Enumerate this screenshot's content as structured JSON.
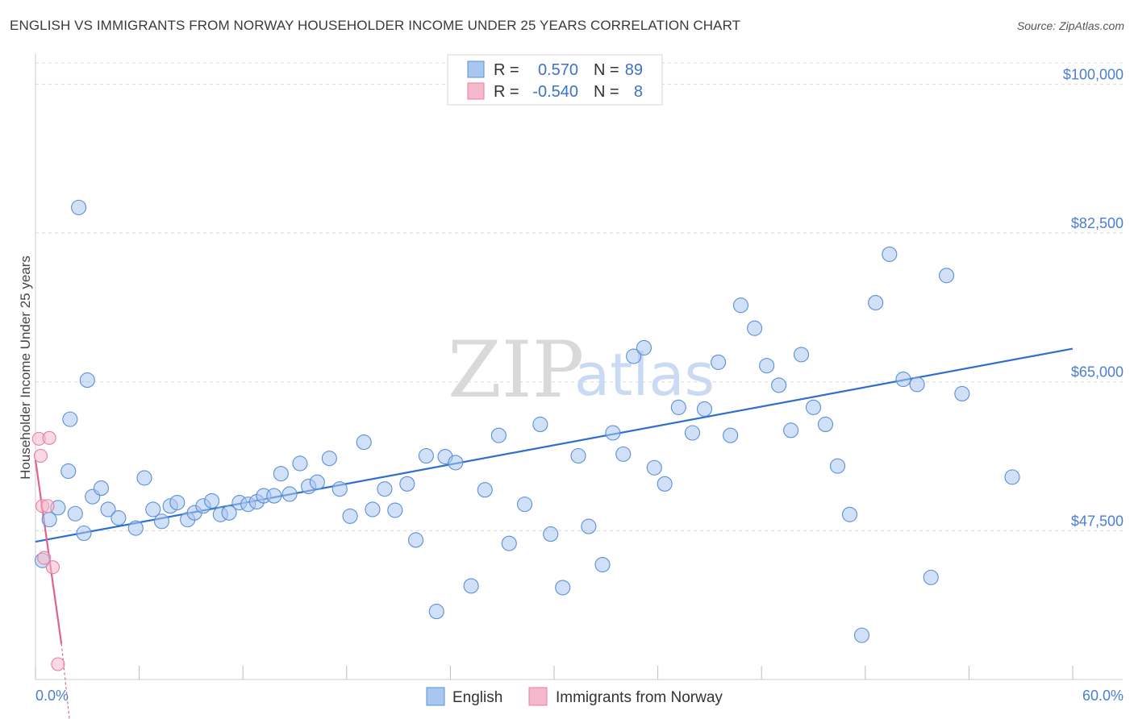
{
  "title": "ENGLISH VS IMMIGRANTS FROM NORWAY HOUSEHOLDER INCOME UNDER 25 YEARS CORRELATION CHART",
  "source": "Source: ZipAtlas.com",
  "watermark": {
    "zip": "ZIP",
    "atlas": "atlas"
  },
  "colors": {
    "english_fill": "#a9c7ee",
    "english_stroke": "#5b8fd6",
    "english_line": "#2f6fcc",
    "norway_fill": "#f6b9cb",
    "norway_stroke": "#e57ea0",
    "norway_line": "#e0628e",
    "grid": "#d8d8d8",
    "axis_text": "#4a7fd0"
  },
  "legend": {
    "rows": [
      {
        "r_label": "R =",
        "r_value": "0.570",
        "n_label": "N =",
        "n_value": "89"
      },
      {
        "r_label": "R =",
        "r_value": "-0.540",
        "n_label": "N =",
        "n_value": "8"
      }
    ]
  },
  "bottom_legend": [
    "English",
    "Immigrants from Norway"
  ],
  "chart_data": {
    "type": "scatter",
    "xlabel": "",
    "ylabel": "Householder Income Under 25 years",
    "xlim": [
      0,
      60
    ],
    "ylim": [
      30000,
      102500
    ],
    "x_tick_labels": [
      "0.0%",
      "60.0%"
    ],
    "y_ticks": [
      47500,
      65000,
      82500,
      100000
    ],
    "y_tick_labels": [
      "$47,500",
      "$65,000",
      "$82,500",
      "$100,000"
    ],
    "grid": true,
    "legend_position": "top-center",
    "series": [
      {
        "name": "English",
        "x": [
          0.4,
          0.8,
          1.3,
          1.9,
          2.3,
          2.8,
          3.3,
          3.8,
          4.2,
          4.8,
          5.8,
          6.3,
          6.8,
          7.3,
          7.8,
          8.2,
          8.8,
          9.2,
          9.7,
          10.2,
          10.7,
          11.2,
          11.8,
          12.3,
          12.8,
          13.2,
          13.8,
          14.2,
          14.7,
          15.3,
          15.8,
          16.3,
          17.0,
          17.6,
          18.2,
          19.0,
          19.5,
          20.2,
          20.8,
          21.5,
          22.0,
          22.6,
          23.2,
          23.7,
          24.3,
          25.2,
          26.0,
          26.8,
          27.4,
          28.3,
          29.2,
          29.8,
          30.5,
          31.4,
          32.0,
          32.8,
          33.4,
          34.0,
          34.6,
          35.2,
          35.8,
          36.4,
          37.2,
          38.0,
          38.7,
          39.5,
          40.2,
          40.8,
          41.6,
          42.3,
          43.0,
          43.7,
          44.3,
          45.0,
          45.7,
          46.4,
          47.1,
          47.8,
          48.6,
          49.4,
          50.2,
          51.0,
          51.8,
          52.7,
          53.6,
          56.5,
          2.0,
          2.5,
          3.0
        ],
        "y": [
          44000,
          48800,
          50200,
          54500,
          49500,
          47200,
          51500,
          52500,
          50000,
          49000,
          47800,
          53700,
          50000,
          48600,
          50400,
          50800,
          48800,
          49600,
          50400,
          51000,
          49400,
          49600,
          50800,
          50600,
          50900,
          51600,
          51600,
          54200,
          51800,
          55400,
          52700,
          53200,
          56000,
          52400,
          49200,
          57900,
          50000,
          52400,
          49900,
          53000,
          46400,
          56300,
          38000,
          56200,
          55500,
          41000,
          52300,
          58700,
          46000,
          50600,
          60000,
          47100,
          40800,
          56300,
          48000,
          43500,
          59000,
          56500,
          68000,
          69000,
          54900,
          53000,
          62000,
          59000,
          61800,
          67300,
          58700,
          74000,
          71300,
          66900,
          64600,
          59300,
          68200,
          62000,
          60000,
          55100,
          49400,
          35200,
          74300,
          80000,
          65300,
          64700,
          42000,
          77500,
          63600,
          53800,
          60600,
          85500,
          65200
        ],
        "trend": {
          "x": [
            0,
            60
          ],
          "y": [
            46200,
            68900
          ]
        }
      },
      {
        "name": "Immigrants from Norway",
        "x": [
          0.2,
          0.3,
          0.4,
          0.7,
          0.5,
          1.0,
          1.3,
          0.8
        ],
        "y": [
          58300,
          56300,
          50400,
          50400,
          44300,
          43200,
          31800,
          58400
        ],
        "trend": {
          "x": [
            0,
            1.5
          ],
          "y": [
            55800,
            34200
          ]
        }
      }
    ]
  }
}
